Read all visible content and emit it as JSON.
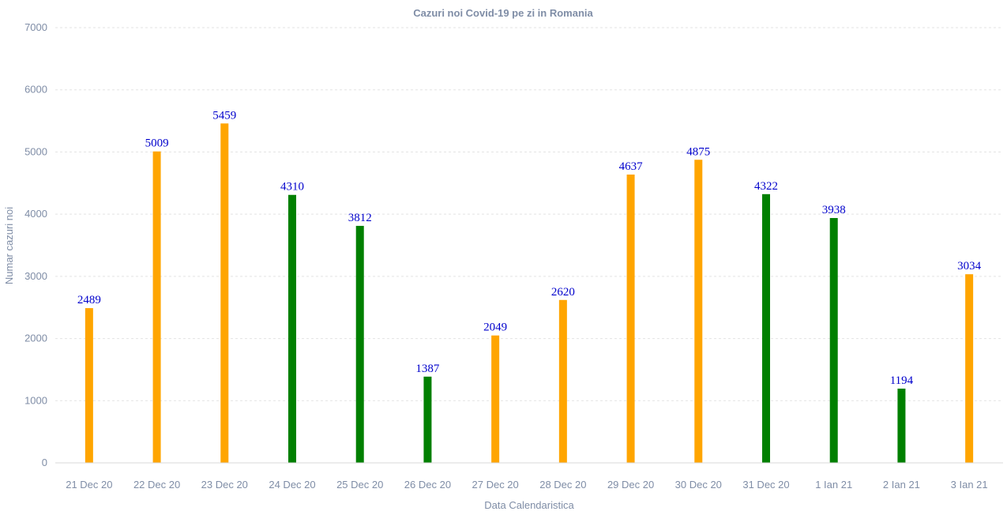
{
  "chart_data": {
    "type": "bar",
    "title": "Cazuri noi Covid-19 pe zi in Romania",
    "xlabel": "Data Calendaristica",
    "ylabel": "Numar cazuri noi",
    "ylim": [
      0,
      7000
    ],
    "yticks": [
      "0",
      "1000",
      "2000",
      "3000",
      "4000",
      "5000",
      "6000",
      "7000"
    ],
    "grid": true,
    "categories": [
      "21 Dec 20",
      "22 Dec 20",
      "23 Dec 20",
      "24 Dec 20",
      "25 Dec 20",
      "26 Dec 20",
      "27 Dec 20",
      "28 Dec 20",
      "29 Dec 20",
      "30 Dec 20",
      "31 Dec 20",
      "1 Ian 21",
      "2 Ian 21",
      "3 Ian 21"
    ],
    "values": [
      2489,
      5009,
      5459,
      4310,
      3812,
      1387,
      2049,
      2620,
      4637,
      4875,
      4322,
      3938,
      1194,
      3034
    ],
    "value_labels": [
      "2489",
      "5009",
      "5459",
      "4310",
      "3812",
      "1387",
      "2049",
      "2620",
      "4637",
      "4875",
      "4322",
      "3938",
      "1194",
      "3034"
    ],
    "bar_colors": [
      "#ffa500",
      "#ffa500",
      "#ffa500",
      "#008000",
      "#008000",
      "#008000",
      "#ffa500",
      "#ffa500",
      "#ffa500",
      "#ffa500",
      "#008000",
      "#008000",
      "#008000",
      "#ffa500"
    ],
    "label_color": "#0000cc"
  }
}
